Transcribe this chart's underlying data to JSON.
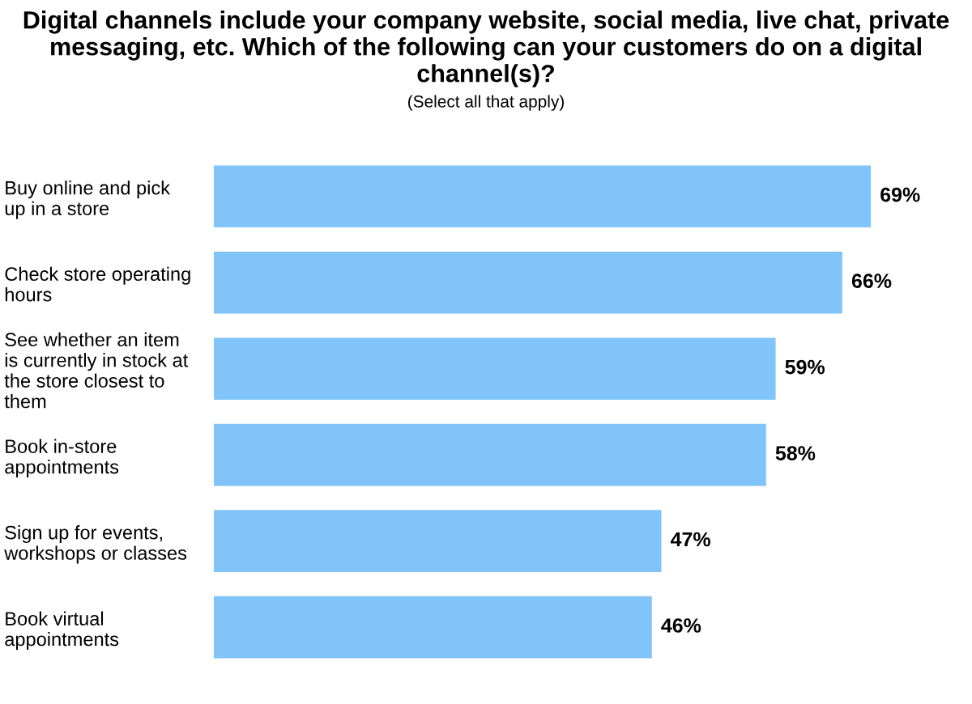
{
  "chart_data": {
    "type": "bar",
    "orientation": "horizontal",
    "title": "Digital channels include your company website, social media, live chat, private messaging, etc. Which of the following can your customers do on a digital channel(s)?",
    "subtitle": "(Select all that apply)",
    "categories": [
      "Buy online and pick\nup in a store",
      "Check store operating\nhours",
      "See whether an item\nis currently in stock at\nthe store closest to\nthem",
      "Book in-store\nappointments",
      "Sign up for events,\nworkshops or classes",
      "Book virtual\nappointments"
    ],
    "values": [
      69,
      66,
      59,
      58,
      47,
      46
    ],
    "value_labels": [
      "69%",
      "66%",
      "59%",
      "58%",
      "47%",
      "46%"
    ],
    "color": "#80c4fa",
    "grid": false,
    "legend": false
  }
}
